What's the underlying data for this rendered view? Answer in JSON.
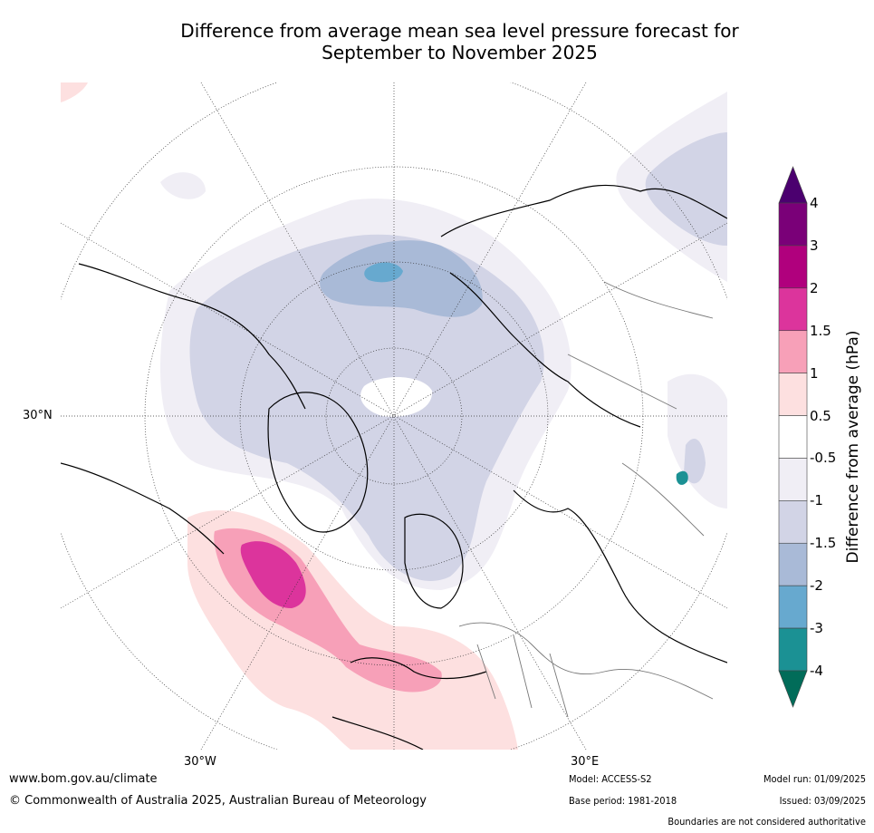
{
  "title_line1": "Difference from average mean sea level pressure forecast for",
  "title_line2": "September to November 2025",
  "colorbar": {
    "title": "Difference from average (hPa)",
    "tick_labels": [
      "4",
      "3",
      "2",
      "1.5",
      "1",
      "0.5",
      "-0.5",
      "-1",
      "-1.5",
      "-2",
      "-3",
      "-4"
    ],
    "colors": [
      "#4b006f",
      "#7a0078",
      "#b0007d",
      "#dc349c",
      "#f7a0b8",
      "#fde0e0",
      "#ffffff",
      "#f0eef5",
      "#d2d4e6",
      "#a9bad7",
      "#67a9cf",
      "#1b9194",
      "#016c59"
    ]
  },
  "map_labels": {
    "lat_30n": "30°N",
    "lon_30w": "30°W",
    "lon_30e": "30°E"
  },
  "footer": {
    "website": "www.bom.gov.au/climate",
    "copyright": "© Commonwealth of Australia 2025, Australian Bureau of Meteorology",
    "model": "Model: ACCESS-S2",
    "base_period": "Base period: 1981-2018",
    "model_run": "Model run: 01/09/2025",
    "issued": "Issued: 03/09/2025",
    "disclaimer": "Boundaries are not considered authoritative"
  }
}
